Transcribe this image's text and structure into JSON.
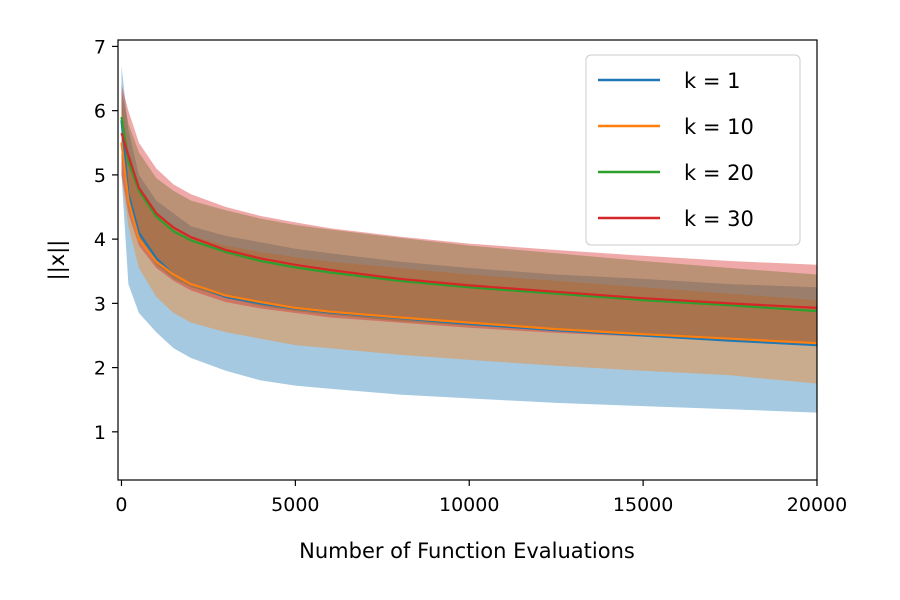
{
  "chart_data": {
    "type": "line",
    "title": "",
    "xlabel": "Number of Function Evaluations",
    "ylabel": "||x||",
    "xlim": [
      -100,
      20000
    ],
    "ylim": [
      0.25,
      7.1
    ],
    "xticks": [
      0,
      5000,
      10000,
      15000,
      20000
    ],
    "xtick_labels": [
      "0",
      "5000",
      "10000",
      "15000",
      "20000"
    ],
    "yticks": [
      1,
      2,
      3,
      4,
      5,
      6,
      7
    ],
    "ytick_labels": [
      "1",
      "2",
      "3",
      "4",
      "5",
      "6",
      "7"
    ],
    "grid": false,
    "legend_position": "top-right",
    "x": [
      0,
      200,
      500,
      1000,
      1500,
      2000,
      3000,
      4000,
      5000,
      6000,
      8000,
      10000,
      12500,
      15000,
      17500,
      20000
    ],
    "series": [
      {
        "name": "k = 1",
        "color": "#1f77b4",
        "values": [
          5.85,
          4.7,
          4.1,
          3.7,
          3.45,
          3.3,
          3.1,
          3.0,
          2.92,
          2.86,
          2.77,
          2.68,
          2.58,
          2.5,
          2.42,
          2.35
        ],
        "lower": [
          5.0,
          3.3,
          2.85,
          2.55,
          2.3,
          2.15,
          1.95,
          1.8,
          1.72,
          1.67,
          1.58,
          1.52,
          1.45,
          1.4,
          1.35,
          1.3
        ],
        "upper": [
          6.7,
          5.7,
          5.0,
          4.6,
          4.4,
          4.2,
          4.05,
          3.95,
          3.85,
          3.78,
          3.65,
          3.55,
          3.45,
          3.38,
          3.3,
          3.25
        ]
      },
      {
        "name": "k = 10",
        "color": "#ff7f0e",
        "values": [
          5.5,
          4.6,
          4.0,
          3.65,
          3.45,
          3.3,
          3.12,
          3.02,
          2.93,
          2.87,
          2.78,
          2.7,
          2.6,
          2.52,
          2.45,
          2.38
        ],
        "lower": [
          5.0,
          4.2,
          3.55,
          3.1,
          2.85,
          2.7,
          2.55,
          2.45,
          2.35,
          2.3,
          2.2,
          2.12,
          2.03,
          1.95,
          1.88,
          1.75
        ],
        "upper": [
          6.2,
          5.4,
          4.8,
          4.4,
          4.2,
          4.05,
          3.9,
          3.8,
          3.72,
          3.65,
          3.55,
          3.45,
          3.35,
          3.25,
          3.15,
          3.05
        ]
      },
      {
        "name": "k = 20",
        "color": "#2ca02c",
        "values": [
          5.9,
          5.2,
          4.75,
          4.35,
          4.12,
          3.98,
          3.8,
          3.66,
          3.56,
          3.48,
          3.35,
          3.25,
          3.15,
          3.05,
          2.97,
          2.88
        ],
        "lower": [
          5.3,
          4.5,
          4.0,
          3.6,
          3.38,
          3.25,
          3.08,
          2.96,
          2.88,
          2.82,
          2.72,
          2.65,
          2.57,
          2.5,
          2.45,
          2.4
        ],
        "upper": [
          6.3,
          5.8,
          5.35,
          4.95,
          4.75,
          4.6,
          4.45,
          4.32,
          4.22,
          4.15,
          4.02,
          3.9,
          3.78,
          3.66,
          3.55,
          3.45
        ]
      },
      {
        "name": "k = 30",
        "color": "#d62728",
        "values": [
          5.65,
          5.3,
          4.8,
          4.4,
          4.18,
          4.03,
          3.83,
          3.7,
          3.6,
          3.52,
          3.38,
          3.28,
          3.18,
          3.08,
          3.0,
          2.93
        ],
        "lower": [
          5.0,
          4.4,
          3.9,
          3.55,
          3.35,
          3.2,
          3.02,
          2.92,
          2.85,
          2.78,
          2.7,
          2.62,
          2.54,
          2.48,
          2.42,
          2.37
        ],
        "upper": [
          6.4,
          6.0,
          5.5,
          5.1,
          4.85,
          4.7,
          4.5,
          4.36,
          4.26,
          4.17,
          4.04,
          3.93,
          3.83,
          3.74,
          3.66,
          3.6
        ]
      }
    ]
  }
}
